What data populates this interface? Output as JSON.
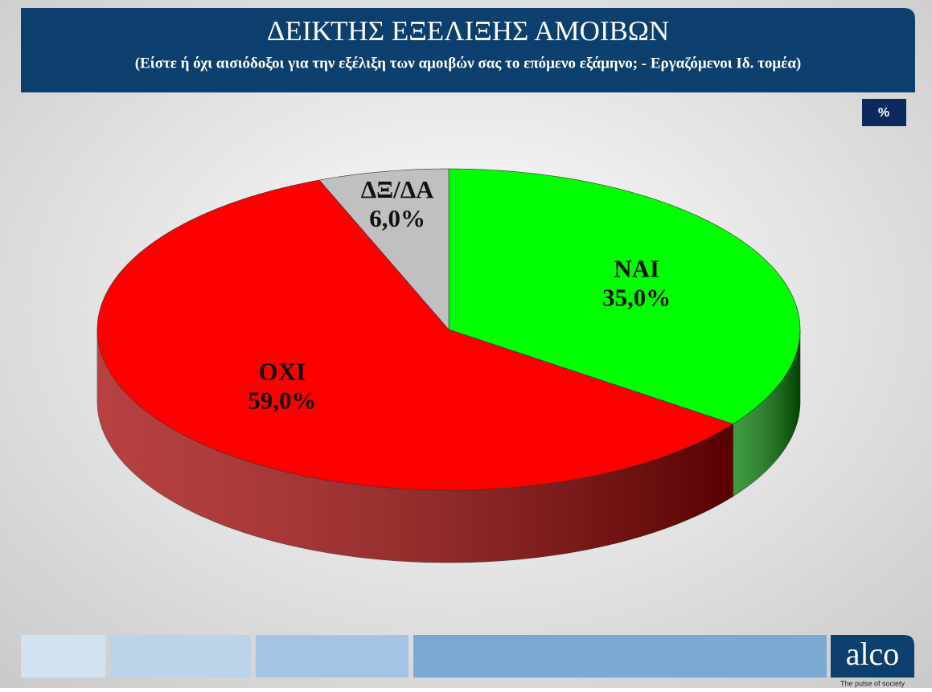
{
  "chart_data": {
    "type": "pie3d",
    "title": "ΔΕΙΚΤΗΣ ΕΞΕΛΙΞΗΣ ΑΜΟΙΒΩΝ",
    "subtitle": "(Είστε ή όχι αισιόδοξοι για την εξέλιξη των αμοιβών σας το επόμενο εξάμηνο; - Εργαζόμενοι Ιδ. τομέα)",
    "categories": [
      "ΝΑΙ",
      "ΟΧΙ",
      "ΔΞ/ΔΑ"
    ],
    "values": [
      35,
      59,
      6
    ],
    "value_labels": [
      "35,0%",
      "59,0%",
      "6,0%"
    ],
    "colors": [
      "#00ff00",
      "#ff0000",
      "#c0c0c0"
    ],
    "side_colors": [
      "#007a00",
      "#a00000",
      "#8a8a8a"
    ]
  },
  "badge": "%",
  "logo": {
    "name": "alco",
    "tagline": "The pulse of society"
  }
}
